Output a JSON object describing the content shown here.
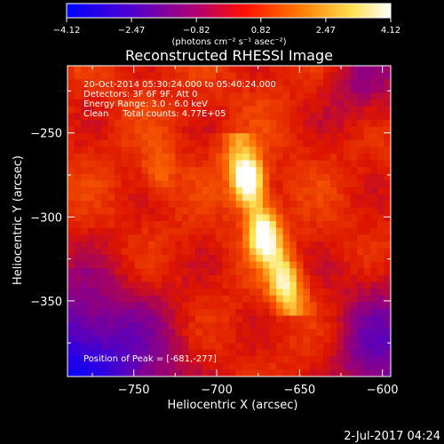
{
  "chart_data": {
    "type": "heatmap",
    "title": "Reconstructed RHESSI Image",
    "xlabel": "Heliocentric X (arcsec)",
    "ylabel": "Heliocentric Y (arcsec)",
    "xlim": [
      -790,
      -595
    ],
    "ylim": [
      -395,
      -210
    ],
    "x_ticks": [
      -750,
      -700,
      -650,
      -600
    ],
    "x_tick_labels": [
      "−750",
      "−700",
      "−650",
      "−600"
    ],
    "y_ticks": [
      -250,
      -300,
      -350
    ],
    "y_tick_labels": [
      "−250",
      "−300",
      "−350"
    ],
    "colorbar": {
      "min": -4.12,
      "max": 4.12,
      "ticks": [
        -4.12,
        -2.47,
        -0.82,
        0.82,
        2.47,
        4.12
      ],
      "tick_labels": [
        "−4.12",
        "−2.47",
        "−0.82",
        "0.82",
        "2.47",
        "4.12"
      ],
      "unit_label": "(photons cm⁻² s⁻¹ asec⁻²)",
      "colors": [
        "#0000ff",
        "#6000d0",
        "#a00090",
        "#ff0000",
        "#ff8000",
        "#ffff80",
        "#ffffff"
      ]
    },
    "annotations": [
      "20-Oct-2014 05:30:24.000 to 05:40:24.000",
      "Detectors: 3F 6F 9F, Att 0",
      "Energy Range: 3.0 - 6.0 keV",
      "Clean     Total counts: 4.77E+05"
    ],
    "peak_label": "Position of Peak = [-681,-277]",
    "peak": [
      -681,
      -277
    ],
    "sources": [
      {
        "x": -681,
        "y": -277,
        "peak": 4.12
      },
      {
        "x": -672,
        "y": -312,
        "peak": 3.4
      },
      {
        "x": -660,
        "y": -340,
        "peak": 2.2
      },
      {
        "x": -735,
        "y": -272,
        "peak": 1.2
      }
    ],
    "footer_date": "2-Jul-2017 04:24"
  }
}
